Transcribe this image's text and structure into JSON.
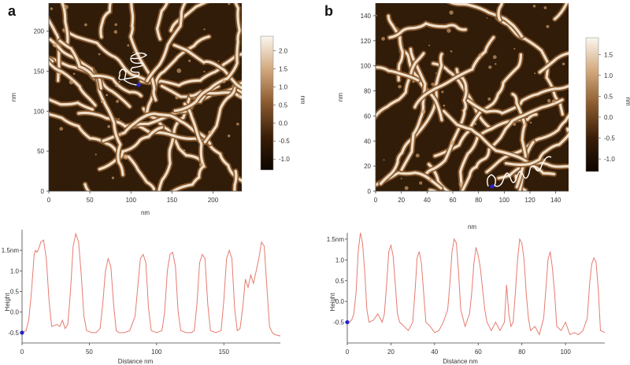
{
  "panels": [
    {
      "letter": "a"
    },
    {
      "letter": "b"
    }
  ],
  "colors": {
    "afm_dark": "#2a1606",
    "afm_mid": "#8a5a2e",
    "afm_bright": "#f3e6d2",
    "profile_line": "#e67b70",
    "trace_marker": "#2323d6",
    "trace_line": "#ffffff"
  },
  "chart_data": [
    {
      "type": "heatmap",
      "panel": "a",
      "title": "",
      "xlabel": "nm",
      "ylabel": "nm",
      "xlim": [
        0,
        235
      ],
      "ylim": [
        0,
        235
      ],
      "xticks": [
        "0",
        "50",
        "100",
        "150",
        "200"
      ],
      "yticks": [
        "0",
        "50",
        "100",
        "150",
        "200"
      ],
      "colorbar": {
        "label": "nm",
        "range": [
          -1.3,
          2.4
        ],
        "ticks": [
          "2.0",
          "1.5",
          "1.0",
          "0.5",
          "0.0",
          "-0.5",
          "-1.0"
        ]
      }
    },
    {
      "type": "heatmap",
      "panel": "b",
      "title": "",
      "xlabel": "nm",
      "ylabel": "nm",
      "xlim": [
        0,
        150
      ],
      "ylim": [
        0,
        150
      ],
      "xticks": [
        "0",
        "20",
        "40",
        "60",
        "80",
        "100",
        "120",
        "140"
      ],
      "yticks": [
        "0",
        "20",
        "40",
        "60",
        "80",
        "100",
        "120",
        "140"
      ],
      "colorbar": {
        "label": "nm",
        "range": [
          -1.3,
          1.9
        ],
        "ticks": [
          "1.5",
          "1.0",
          "0.5",
          "0.0",
          "-0.5",
          "-1.0"
        ]
      }
    },
    {
      "type": "line",
      "panel": "a-profile",
      "xlabel": "Distance  nm",
      "ylabel": "Height",
      "xlim": [
        0,
        192
      ],
      "ylim": [
        -0.75,
        2.0
      ],
      "xticks": [
        "0",
        "50",
        "100",
        "150"
      ],
      "yticks": [
        "1.5nm",
        "1.0",
        "0.5",
        "0.0",
        "-0.5"
      ],
      "series": [
        {
          "x": [
            0,
            3,
            5,
            7,
            9,
            10,
            11,
            12,
            14,
            16,
            18,
            20,
            22,
            26,
            28,
            30,
            32,
            34,
            36,
            38,
            40,
            42,
            44,
            46,
            48,
            52,
            55,
            58,
            60,
            62,
            64,
            66,
            68,
            70,
            72,
            76,
            80,
            84,
            86,
            88,
            90,
            92,
            94,
            96,
            100,
            104,
            106,
            108,
            110,
            112,
            114,
            116,
            118,
            122,
            126,
            128,
            130,
            132,
            134,
            136,
            138,
            140,
            144,
            148,
            150,
            152,
            154,
            156,
            158,
            160,
            162,
            164,
            166,
            168,
            170,
            172,
            174,
            176,
            178,
            180,
            182,
            184,
            186,
            188,
            192
          ],
          "y": [
            -0.5,
            -0.45,
            -0.2,
            0.5,
            1.4,
            1.5,
            1.45,
            1.5,
            1.7,
            1.75,
            1.3,
            0.3,
            -0.35,
            -0.3,
            -0.35,
            -0.2,
            -0.4,
            -0.3,
            0.5,
            1.6,
            1.9,
            1.7,
            0.9,
            -0.1,
            -0.45,
            -0.5,
            -0.5,
            -0.4,
            0.2,
            1.0,
            1.3,
            1.1,
            0.2,
            -0.45,
            -0.5,
            -0.5,
            -0.45,
            -0.1,
            0.6,
            1.3,
            1.4,
            1.2,
            0.1,
            -0.45,
            -0.5,
            -0.45,
            0.0,
            1.0,
            1.4,
            1.45,
            1.1,
            0.0,
            -0.45,
            -0.5,
            -0.5,
            -0.45,
            0.2,
            1.2,
            1.4,
            1.3,
            0.2,
            -0.45,
            -0.5,
            -0.45,
            0.3,
            1.3,
            1.5,
            1.3,
            0.1,
            -0.45,
            -0.4,
            0.1,
            0.8,
            0.6,
            0.9,
            0.7,
            1.0,
            1.3,
            1.7,
            1.6,
            0.6,
            -0.35,
            -0.5,
            -0.55,
            -0.58
          ]
        }
      ]
    },
    {
      "type": "line",
      "panel": "b-profile",
      "xlabel": "Distance  nm",
      "ylabel": "Height",
      "xlim": [
        0,
        118
      ],
      "ylim": [
        -1.0,
        1.65
      ],
      "xticks": [
        "0",
        "20",
        "40",
        "60",
        "80",
        "100"
      ],
      "yticks": [
        "1.5nm",
        "1.0",
        "0.5",
        "0.0",
        "-0.5"
      ],
      "series": [
        {
          "x": [
            0,
            1,
            2,
            3,
            4,
            5,
            6,
            7,
            8,
            9,
            10,
            12,
            14,
            16,
            17,
            18,
            19,
            20,
            21,
            22,
            23,
            24,
            26,
            28,
            30,
            31,
            32,
            33,
            34,
            35,
            36,
            38,
            40,
            42,
            44,
            46,
            47,
            48,
            49,
            50,
            51,
            52,
            54,
            56,
            57,
            58,
            59,
            60,
            61,
            62,
            63,
            64,
            66,
            68,
            70,
            72,
            73,
            74,
            75,
            76,
            77,
            78,
            79,
            80,
            81,
            82,
            83,
            84,
            86,
            88,
            90,
            91,
            92,
            93,
            94,
            95,
            96,
            98,
            100,
            102,
            104,
            106,
            108,
            110,
            111,
            112,
            113,
            114,
            115,
            116,
            118
          ],
          "y": [
            -0.5,
            -0.5,
            -0.45,
            -0.3,
            0.2,
            1.2,
            1.65,
            1.4,
            0.7,
            -0.2,
            -0.5,
            -0.45,
            -0.3,
            -0.5,
            -0.3,
            0.4,
            1.2,
            1.35,
            1.1,
            0.4,
            -0.3,
            -0.5,
            -0.6,
            -0.7,
            -0.5,
            0.2,
            1.05,
            1.2,
            0.9,
            0.2,
            -0.5,
            -0.6,
            -0.75,
            -0.7,
            -0.5,
            -0.2,
            0.4,
            1.2,
            1.5,
            1.4,
            0.7,
            -0.2,
            -0.6,
            -0.3,
            0.2,
            0.9,
            1.3,
            1.1,
            0.8,
            0.3,
            -0.2,
            -0.5,
            -0.7,
            -0.5,
            -0.7,
            -0.5,
            0.4,
            -0.3,
            -0.6,
            -0.5,
            0.2,
            1.0,
            1.5,
            1.4,
            1.0,
            0.2,
            -0.4,
            -0.7,
            -0.6,
            -0.8,
            -0.4,
            0.3,
            1.0,
            1.2,
            0.8,
            0.2,
            -0.6,
            -0.7,
            -0.5,
            -0.8,
            -0.75,
            -0.8,
            -0.7,
            -0.4,
            0.4,
            0.9,
            1.05,
            0.95,
            0.3,
            -0.7,
            -0.75
          ]
        }
      ]
    }
  ]
}
